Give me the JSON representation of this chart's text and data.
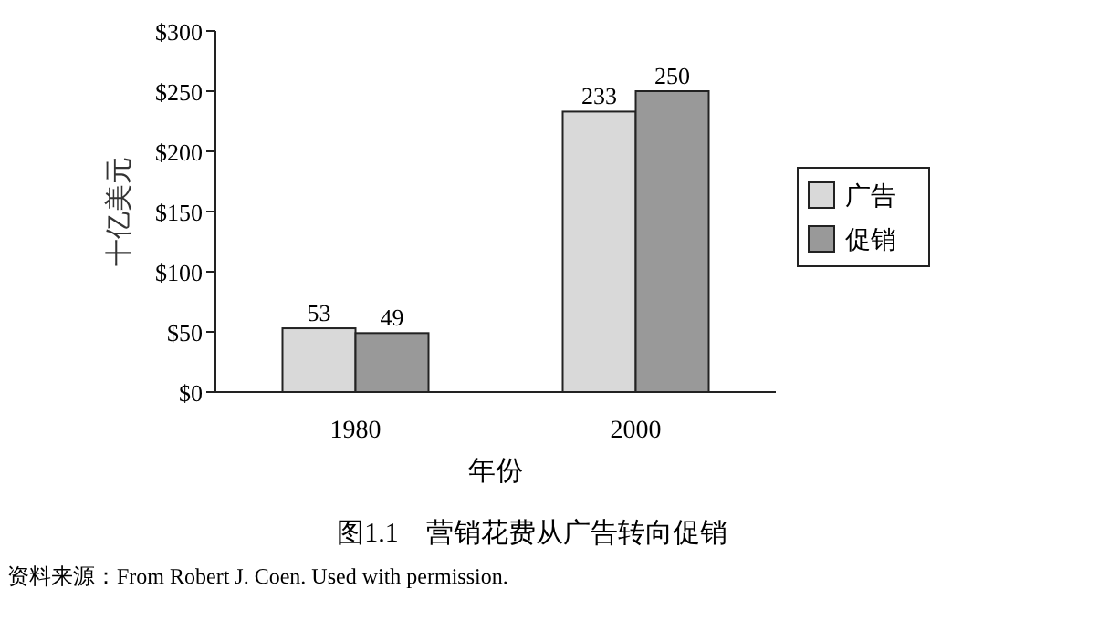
{
  "chart_data": {
    "type": "bar",
    "title": "图1.1　营销花费从广告转向促销",
    "xlabel": "年份",
    "ylabel": "十亿美元",
    "categories": [
      "1980",
      "2000"
    ],
    "series": [
      {
        "name": "广告",
        "color": "#d9d9d9",
        "values": [
          53,
          233
        ]
      },
      {
        "name": "促销",
        "color": "#999999",
        "values": [
          49,
          250
        ]
      }
    ],
    "ylim": [
      0,
      300
    ],
    "yticks": [
      {
        "value": 0,
        "label": "$0"
      },
      {
        "value": 50,
        "label": "$50"
      },
      {
        "value": 100,
        "label": "$100"
      },
      {
        "value": 150,
        "label": "$150"
      },
      {
        "value": 200,
        "label": "$200"
      },
      {
        "value": 250,
        "label": "$250"
      },
      {
        "value": 300,
        "label": "$300"
      }
    ],
    "data_labels": true,
    "legend": "right",
    "grid": false,
    "annotations": [
      "资料来源：From Robert J. Coen. Used with permission."
    ]
  }
}
